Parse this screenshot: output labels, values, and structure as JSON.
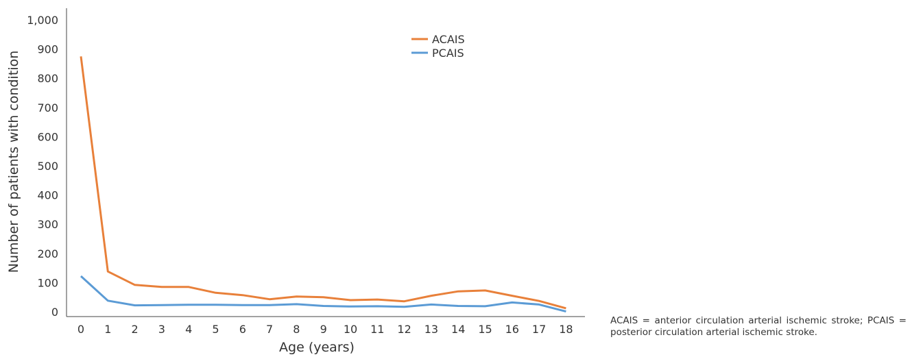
{
  "chart_data": {
    "type": "line",
    "x": [
      0,
      1,
      2,
      3,
      4,
      5,
      6,
      7,
      8,
      9,
      10,
      11,
      12,
      13,
      14,
      15,
      16,
      17,
      18
    ],
    "series": [
      {
        "name": "ACAIS",
        "color": "#e8803a",
        "values": [
          875,
          138,
          92,
          85,
          85,
          65,
          57,
          43,
          52,
          50,
          40,
          42,
          36,
          55,
          70,
          73,
          55,
          37,
          12
        ]
      },
      {
        "name": "PCAIS",
        "color": "#5b9bd5",
        "values": [
          122,
          38,
          22,
          23,
          24,
          24,
          23,
          23,
          26,
          20,
          18,
          19,
          17,
          25,
          20,
          19,
          32,
          25,
          1
        ]
      }
    ],
    "xlabel": "Age (years)",
    "ylabel": "Number of patients with condition",
    "ylim": [
      0,
      1000
    ],
    "yticks": [
      0,
      100,
      200,
      300,
      400,
      500,
      600,
      700,
      800,
      900,
      1000
    ],
    "ytick_labels": [
      "0",
      "100",
      "200",
      "300",
      "400",
      "500",
      "600",
      "700",
      "800",
      "900",
      "1,000"
    ],
    "grid": false,
    "legend_position": "top-center"
  },
  "caption": "ACAIS = anterior circulation arterial ischemic stroke; PCAIS = posterior circulation arterial ische­mic stroke."
}
